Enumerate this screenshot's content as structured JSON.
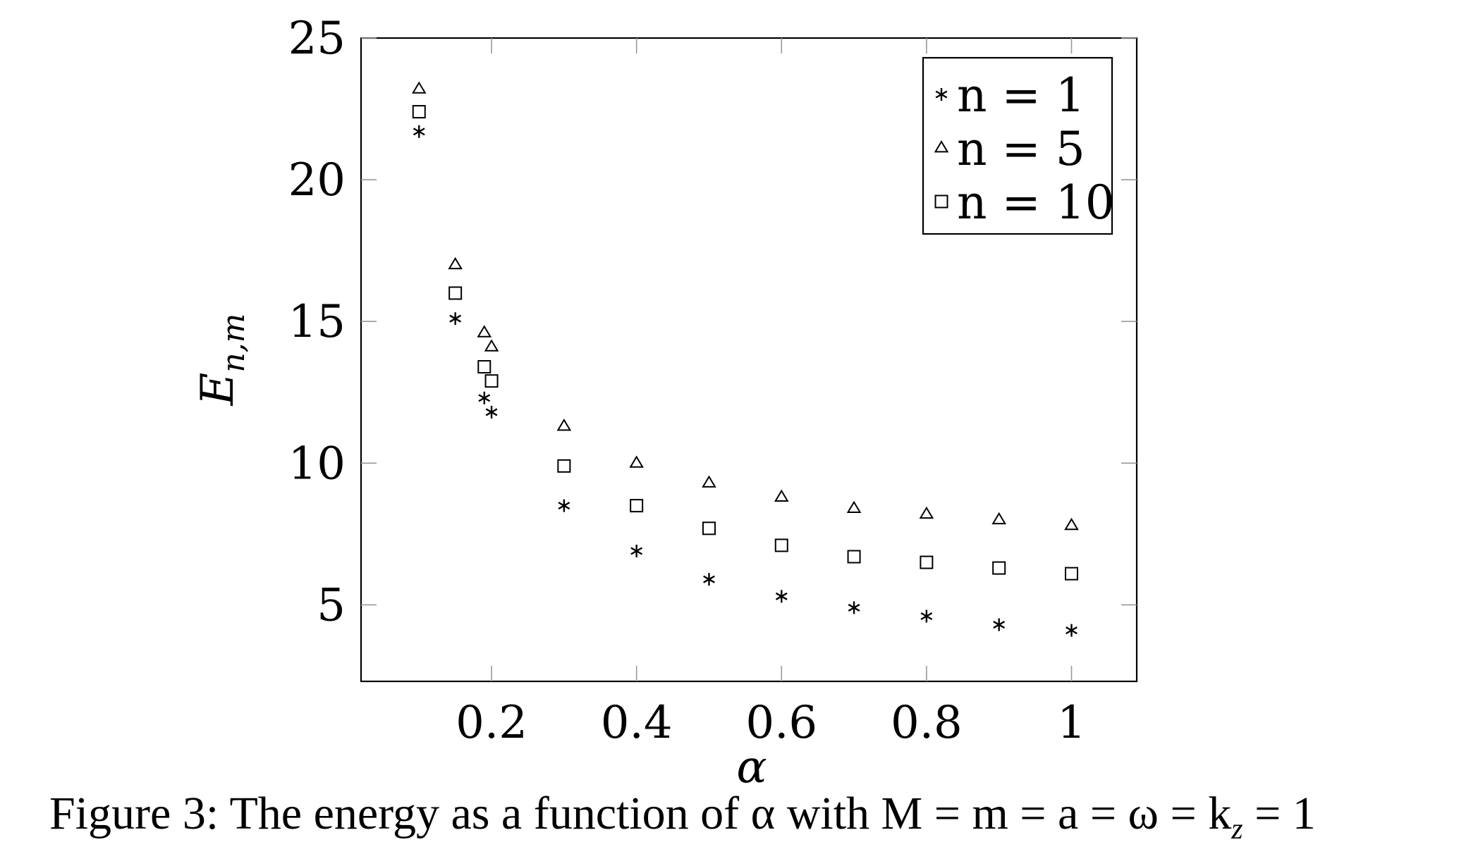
{
  "chart_data": {
    "type": "scatter",
    "xlabel": "α",
    "ylabel_main": "E",
    "ylabel_sub": "n,m",
    "xlim": [
      0.02,
      1.09
    ],
    "ylim": [
      2.3,
      25
    ],
    "xticks": [
      0.2,
      0.4,
      0.6,
      0.8,
      1
    ],
    "xtick_labels": [
      "0.2",
      "0.4",
      "0.6",
      "0.8",
      "1"
    ],
    "yticks": [
      5,
      10,
      15,
      20,
      25
    ],
    "ytick_labels": [
      "5",
      "10",
      "15",
      "20",
      "25"
    ],
    "grid": false,
    "legend_position": "top-right",
    "series": [
      {
        "name": "n = 1",
        "marker": "asterisk",
        "x": [
          0.1,
          0.15,
          0.19,
          0.2,
          0.3,
          0.4,
          0.5,
          0.6,
          0.7,
          0.8,
          0.9,
          1.0
        ],
        "y": [
          21.7,
          15.1,
          12.3,
          11.8,
          8.5,
          6.9,
          5.9,
          5.3,
          4.9,
          4.6,
          4.3,
          4.1
        ]
      },
      {
        "name": "n = 5",
        "marker": "triangle",
        "x": [
          0.1,
          0.15,
          0.19,
          0.2,
          0.3,
          0.4,
          0.5,
          0.6,
          0.7,
          0.8,
          0.9,
          1.0
        ],
        "y": [
          23.2,
          17.0,
          14.6,
          14.1,
          11.3,
          10.0,
          9.3,
          8.8,
          8.4,
          8.2,
          8.0,
          7.8
        ]
      },
      {
        "name": "n = 10",
        "marker": "square",
        "x": [
          0.1,
          0.15,
          0.19,
          0.2,
          0.3,
          0.4,
          0.5,
          0.6,
          0.7,
          0.8,
          0.9,
          1.0
        ],
        "y": [
          22.4,
          16.0,
          13.4,
          12.9,
          9.9,
          8.5,
          7.7,
          7.1,
          6.7,
          6.5,
          6.3,
          6.1
        ]
      }
    ]
  },
  "caption": "Figure 3: The energy as a function of α with M = m = a = ω = k",
  "caption_sub": "z",
  "caption_end": " = 1"
}
